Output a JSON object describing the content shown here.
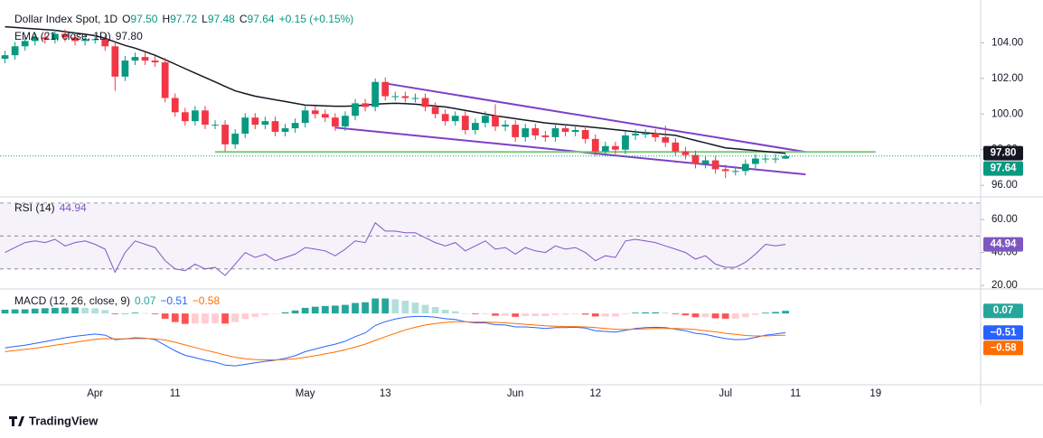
{
  "chart_data": [
    {
      "type": "candlestick",
      "title": "Dollar Index Spot, 1D",
      "legend": [
        {
          "label": "O",
          "value": "97.50"
        },
        {
          "label": "H",
          "value": "97.72"
        },
        {
          "label": "L",
          "value": "97.48"
        },
        {
          "label": "C",
          "value": "97.64"
        }
      ],
      "change": "+0.15 (+0.15%)",
      "last_label": "97.64",
      "up_color": "#089981",
      "down_color": "#f23645",
      "categories": [
        null,
        null,
        null,
        null,
        null,
        null,
        null,
        null,
        null,
        "Apr",
        null,
        null,
        null,
        null,
        null,
        null,
        null,
        "11",
        null,
        null,
        null,
        null,
        null,
        null,
        null,
        null,
        null,
        null,
        null,
        null,
        "May",
        null,
        null,
        null,
        null,
        null,
        null,
        null,
        "13",
        null,
        null,
        null,
        null,
        null,
        null,
        null,
        null,
        null,
        null,
        null,
        null,
        "Jun",
        null,
        null,
        null,
        null,
        null,
        null,
        null,
        "12",
        null,
        null,
        null,
        null,
        null,
        null,
        null,
        null,
        null,
        null,
        null,
        null,
        "Jul",
        null,
        null,
        null,
        null,
        null,
        null,
        "11",
        null,
        null,
        null,
        null,
        null,
        null,
        null,
        "19",
        null,
        null,
        null,
        null,
        null,
        null,
        null,
        null,
        null,
        null
      ],
      "open": [
        103.1,
        103.3,
        103.8,
        104.1,
        104.3,
        104.2,
        104.5,
        104.3,
        104.1,
        104.2,
        104.2,
        103.8,
        102.1,
        103.0,
        103.2,
        103.0,
        102.9,
        100.9,
        100.1,
        99.6,
        100.2,
        99.4,
        99.4,
        98.3,
        98.9,
        99.8,
        99.4,
        99.6,
        99.0,
        99.2,
        99.5,
        100.2,
        100.0,
        99.8,
        99.3,
        99.9,
        100.6,
        100.4,
        101.8,
        101.0,
        101.0,
        100.9,
        100.9,
        100.4,
        100.0,
        99.6,
        99.9,
        99.1,
        99.5,
        99.9,
        99.3,
        99.4,
        98.7,
        99.2,
        98.8,
        98.7,
        99.2,
        99.0,
        99.1,
        98.6,
        97.9,
        98.2,
        98.0,
        98.8,
        98.9,
        98.9,
        98.7,
        98.4,
        97.9,
        97.7,
        97.2,
        97.4,
        96.9,
        96.8,
        96.8,
        97.2,
        97.5,
        97.5,
        97.5,
        null,
        null,
        null,
        null,
        null,
        null,
        null,
        null,
        null,
        null,
        null,
        null,
        null,
        null,
        null,
        null,
        null,
        null,
        null
      ],
      "high": [
        103.55,
        104.05,
        104.35,
        104.55,
        104.55,
        104.75,
        104.75,
        104.55,
        104.45,
        104.45,
        104.45,
        104.05,
        103.25,
        103.45,
        103.45,
        103.25,
        103.15,
        101.15,
        100.35,
        100.45,
        100.45,
        99.65,
        99.65,
        99.15,
        100.05,
        100.05,
        99.85,
        99.85,
        99.45,
        99.75,
        100.45,
        100.45,
        100.25,
        100.05,
        100.15,
        100.85,
        100.85,
        102.0,
        102.05,
        101.25,
        101.25,
        101.15,
        101.15,
        100.65,
        100.25,
        100.15,
        100.15,
        99.75,
        100.15,
        100.55,
        99.65,
        99.65,
        99.45,
        99.45,
        99.05,
        99.45,
        99.45,
        99.35,
        99.35,
        98.85,
        98.45,
        98.45,
        99.05,
        99.15,
        99.15,
        99.15,
        99.35,
        98.65,
        98.15,
        97.95,
        97.65,
        97.65,
        97.15,
        97.05,
        97.45,
        97.75,
        97.75,
        97.75,
        97.72,
        null,
        null,
        null,
        null,
        null,
        null,
        null,
        null,
        null,
        null,
        null,
        null,
        null,
        null,
        null,
        null,
        null,
        null,
        null
      ],
      "low": [
        102.85,
        103.05,
        103.55,
        103.85,
        103.95,
        103.95,
        104.05,
        103.85,
        103.85,
        103.95,
        103.55,
        101.3,
        101.85,
        102.75,
        102.75,
        102.65,
        100.65,
        99.85,
        99.35,
        99.35,
        99.15,
        99.15,
        97.9,
        98.05,
        98.65,
        99.15,
        99.15,
        98.75,
        98.75,
        98.95,
        99.25,
        99.75,
        99.55,
        99.05,
        99.05,
        99.65,
        100.15,
        100.15,
        100.75,
        100.75,
        100.65,
        100.65,
        100.15,
        99.75,
        99.35,
        99.35,
        98.85,
        98.85,
        99.25,
        99.05,
        99.05,
        98.45,
        98.45,
        98.55,
        98.45,
        98.45,
        98.75,
        98.75,
        98.35,
        97.65,
        97.65,
        97.75,
        97.75,
        98.55,
        98.65,
        98.45,
        98.15,
        97.65,
        97.45,
        96.95,
        96.95,
        96.65,
        96.4,
        96.55,
        96.55,
        96.95,
        97.25,
        97.25,
        97.48,
        null,
        null,
        null,
        null,
        null,
        null,
        null,
        null,
        null,
        null,
        null,
        null,
        null,
        null,
        null,
        null,
        null,
        null,
        null
      ],
      "close": [
        103.3,
        103.8,
        104.1,
        104.3,
        104.2,
        104.5,
        104.3,
        104.1,
        104.2,
        104.2,
        103.8,
        102.1,
        103.0,
        103.2,
        103.0,
        102.9,
        100.9,
        100.1,
        99.6,
        100.2,
        99.4,
        99.4,
        98.3,
        98.9,
        99.8,
        99.4,
        99.6,
        99.0,
        99.2,
        99.5,
        100.2,
        100.0,
        99.8,
        99.3,
        99.9,
        100.6,
        100.4,
        101.8,
        101.0,
        101.0,
        100.9,
        100.9,
        100.4,
        100.0,
        99.6,
        99.9,
        99.1,
        99.5,
        99.9,
        99.3,
        99.4,
        98.7,
        99.2,
        98.8,
        98.7,
        99.2,
        99.0,
        99.1,
        98.6,
        97.9,
        98.2,
        98.0,
        98.8,
        98.9,
        98.9,
        98.7,
        98.4,
        97.9,
        97.7,
        97.2,
        97.4,
        96.9,
        96.8,
        96.8,
        97.2,
        97.5,
        97.5,
        97.5,
        97.64,
        null,
        null,
        null,
        null,
        null,
        null,
        null,
        null,
        null,
        null,
        null,
        null,
        null,
        null,
        null,
        null,
        null,
        null,
        null
      ],
      "series": [
        {
          "name": "EMA (21, close, 1D)",
          "color": "#131722",
          "last_label": "97.80",
          "values": [
            104.9,
            104.86,
            104.82,
            104.78,
            104.74,
            104.7,
            104.62,
            104.55,
            104.48,
            104.4,
            104.25,
            104.05,
            103.85,
            103.7,
            103.5,
            103.3,
            103.05,
            102.8,
            102.55,
            102.3,
            102.05,
            101.8,
            101.55,
            101.3,
            101.15,
            101.0,
            100.9,
            100.8,
            100.7,
            100.6,
            100.5,
            100.48,
            100.46,
            100.44,
            100.44,
            100.46,
            100.5,
            100.55,
            100.58,
            100.6,
            100.58,
            100.55,
            100.5,
            100.45,
            100.4,
            100.3,
            100.2,
            100.1,
            100.0,
            99.9,
            99.82,
            99.74,
            99.66,
            99.58,
            99.5,
            99.45,
            99.4,
            99.35,
            99.3,
            99.24,
            99.18,
            99.12,
            99.06,
            99.0,
            98.95,
            98.9,
            98.85,
            98.8,
            98.66,
            98.52,
            98.38,
            98.24,
            98.1,
            98.05,
            98.0,
            97.95,
            97.9,
            97.85,
            97.8,
            null,
            null,
            null,
            null,
            null,
            null,
            null,
            null,
            null,
            null,
            null,
            null,
            null,
            null,
            null,
            null,
            null,
            null,
            null
          ]
        }
      ],
      "trendlines": [
        {
          "color": "#7e3fc8",
          "from": 38,
          "to": 80,
          "values": [
            101.72,
            97.87
          ]
        },
        {
          "color": "#7e3fc8",
          "from": 33,
          "to": 80,
          "values": [
            99.24,
            96.61
          ]
        },
        {
          "color": "#7cc87a",
          "from": 21,
          "to": 87,
          "values": [
            97.87,
            97.87
          ]
        }
      ],
      "ylim": [
        95.4,
        106.4
      ],
      "yticks": [
        {
          "value": 96,
          "label": "96.00"
        },
        {
          "value": 98,
          "label": "98.00"
        },
        {
          "value": 100,
          "label": "100.00"
        },
        {
          "value": 102,
          "label": "102.00"
        },
        {
          "value": 104,
          "label": "104.00"
        }
      ]
    },
    {
      "type": "line",
      "title": "RSI (14)",
      "levels": [
        70,
        50,
        30
      ],
      "series": [
        {
          "name": "RSI (14)",
          "color": "#7e57c2",
          "last_label": "44.94",
          "values": [
            40,
            43,
            46,
            47,
            46,
            48,
            44,
            46,
            47,
            45,
            42,
            28,
            40,
            47,
            45,
            43,
            35,
            30,
            29,
            33,
            30,
            31,
            26,
            33,
            40,
            37,
            39,
            35,
            37,
            39,
            43,
            42,
            41,
            38,
            42,
            47,
            46,
            58,
            53,
            53,
            52,
            52,
            49,
            46,
            44,
            46,
            41,
            44,
            47,
            42,
            43,
            39,
            43,
            41,
            40,
            44,
            42,
            43,
            40,
            35,
            38,
            37,
            47,
            48,
            47,
            46,
            44,
            42,
            40,
            36,
            38,
            33,
            31,
            31,
            34,
            39,
            45,
            44,
            44.94,
            null,
            null,
            null,
            null,
            null,
            null,
            null,
            null,
            null,
            null,
            null,
            null,
            null,
            null,
            null,
            null,
            null,
            null,
            null
          ]
        }
      ],
      "ylim": [
        18.4,
        73.2
      ],
      "yticks": [
        {
          "value": 20,
          "label": "20.00"
        },
        {
          "value": 40,
          "label": "40.00"
        },
        {
          "value": 60,
          "label": "60.00"
        }
      ]
    },
    {
      "type": "macd",
      "title": "MACD (12, 26, close, 9)",
      "histogram": {
        "last_label": "0.07",
        "colors": {
          "grow_above": "#26a69a",
          "fall_above": "#b2dfdb",
          "grow_below": "#ffcdd2",
          "fall_below": "#ff5252"
        },
        "values": [
          0.1,
          0.11,
          0.11,
          0.13,
          0.14,
          0.15,
          0.16,
          0.16,
          0.15,
          0.14,
          0.09,
          -0.02,
          0.0,
          0.02,
          0.01,
          -0.02,
          -0.14,
          -0.23,
          -0.28,
          -0.27,
          -0.27,
          -0.26,
          -0.27,
          -0.23,
          -0.15,
          -0.09,
          -0.04,
          -0.01,
          0.03,
          0.08,
          0.15,
          0.18,
          0.2,
          0.21,
          0.23,
          0.28,
          0.3,
          0.4,
          0.4,
          0.38,
          0.34,
          0.29,
          0.23,
          0.17,
          0.1,
          0.06,
          0.0,
          -0.02,
          -0.02,
          -0.06,
          -0.06,
          -0.09,
          -0.07,
          -0.07,
          -0.07,
          -0.04,
          -0.03,
          -0.02,
          -0.03,
          -0.08,
          -0.08,
          -0.08,
          -0.02,
          0.02,
          0.03,
          0.03,
          0.02,
          -0.02,
          -0.05,
          -0.1,
          -0.1,
          -0.13,
          -0.14,
          -0.14,
          -0.1,
          -0.04,
          0.02,
          0.04,
          0.07,
          null,
          null,
          null,
          null,
          null,
          null,
          null,
          null,
          null,
          null,
          null,
          null,
          null,
          null,
          null,
          null,
          null,
          null,
          null
        ]
      },
      "series": [
        {
          "color": "#2962ff",
          "last_label": "−0.51",
          "values": [
            -0.92,
            -0.88,
            -0.85,
            -0.8,
            -0.75,
            -0.7,
            -0.65,
            -0.61,
            -0.58,
            -0.55,
            -0.58,
            -0.7,
            -0.68,
            -0.65,
            -0.66,
            -0.7,
            -0.85,
            -1.0,
            -1.12,
            -1.18,
            -1.25,
            -1.3,
            -1.38,
            -1.4,
            -1.36,
            -1.32,
            -1.28,
            -1.25,
            -1.2,
            -1.13,
            -1.02,
            -0.95,
            -0.88,
            -0.82,
            -0.74,
            -0.62,
            -0.52,
            -0.32,
            -0.22,
            -0.15,
            -0.1,
            -0.08,
            -0.08,
            -0.1,
            -0.14,
            -0.16,
            -0.22,
            -0.25,
            -0.25,
            -0.3,
            -0.31,
            -0.36,
            -0.36,
            -0.38,
            -0.4,
            -0.38,
            -0.38,
            -0.37,
            -0.39,
            -0.46,
            -0.48,
            -0.5,
            -0.45,
            -0.4,
            -0.38,
            -0.37,
            -0.38,
            -0.42,
            -0.46,
            -0.53,
            -0.56,
            -0.62,
            -0.67,
            -0.7,
            -0.69,
            -0.64,
            -0.58,
            -0.55,
            -0.51,
            null,
            null,
            null,
            null,
            null,
            null,
            null,
            null,
            null,
            null,
            null,
            null,
            null,
            null,
            null,
            null,
            null,
            null,
            null
          ]
        },
        {
          "color": "#ff6d00",
          "last_label": "−0.58",
          "values": [
            -1.02,
            -0.99,
            -0.96,
            -0.93,
            -0.89,
            -0.85,
            -0.81,
            -0.77,
            -0.73,
            -0.69,
            -0.67,
            -0.68,
            -0.68,
            -0.67,
            -0.67,
            -0.68,
            -0.71,
            -0.77,
            -0.84,
            -0.91,
            -0.98,
            -1.04,
            -1.11,
            -1.17,
            -1.21,
            -1.23,
            -1.24,
            -1.24,
            -1.23,
            -1.21,
            -1.17,
            -1.13,
            -1.08,
            -1.03,
            -0.97,
            -0.9,
            -0.82,
            -0.72,
            -0.62,
            -0.53,
            -0.44,
            -0.37,
            -0.31,
            -0.27,
            -0.24,
            -0.22,
            -0.22,
            -0.23,
            -0.23,
            -0.24,
            -0.25,
            -0.27,
            -0.29,
            -0.31,
            -0.33,
            -0.34,
            -0.35,
            -0.35,
            -0.36,
            -0.38,
            -0.4,
            -0.42,
            -0.43,
            -0.42,
            -0.41,
            -0.4,
            -0.4,
            -0.4,
            -0.41,
            -0.43,
            -0.46,
            -0.49,
            -0.53,
            -0.56,
            -0.59,
            -0.6,
            -0.6,
            -0.59,
            -0.58,
            null,
            null,
            null,
            null,
            null,
            null,
            null,
            null,
            null,
            null,
            null,
            null,
            null,
            null,
            null,
            null,
            null,
            null,
            null
          ]
        }
      ],
      "ylim": [
        -1.88,
        0.63
      ]
    }
  ],
  "footer": {
    "brand": "TradingView"
  }
}
